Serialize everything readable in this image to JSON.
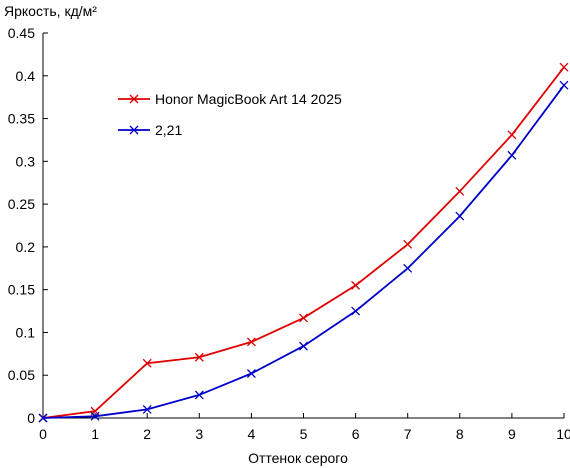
{
  "chart_data": {
    "type": "line",
    "title": "",
    "ylabel": "Яркость, кд/м²",
    "xlabel": "Оттенок серого",
    "x": [
      0,
      1,
      2,
      3,
      4,
      5,
      6,
      7,
      8,
      9,
      10
    ],
    "xlim": [
      0,
      10
    ],
    "ylim": [
      0,
      0.45
    ],
    "x_ticks": [
      "0",
      "1",
      "2",
      "3",
      "4",
      "5",
      "6",
      "7",
      "8",
      "9",
      "10"
    ],
    "y_ticks": [
      "0",
      "0.05",
      "0.1",
      "0.15",
      "0.2",
      "0.25",
      "0.3",
      "0.35",
      "0.4",
      "0.45"
    ],
    "grid": false,
    "legend_position": "upper-left-inside",
    "marker": "x",
    "series": [
      {
        "name": "Honor MagicBook Art 14 2025",
        "color": "#e00000",
        "values": [
          0.0,
          0.008,
          0.064,
          0.071,
          0.089,
          0.117,
          0.155,
          0.203,
          0.265,
          0.331,
          0.41
        ]
      },
      {
        "name": "2,21",
        "color": "#0000cc",
        "values": [
          0.0,
          0.002,
          0.01,
          0.027,
          0.052,
          0.084,
          0.125,
          0.175,
          0.236,
          0.307,
          0.389
        ]
      }
    ]
  }
}
